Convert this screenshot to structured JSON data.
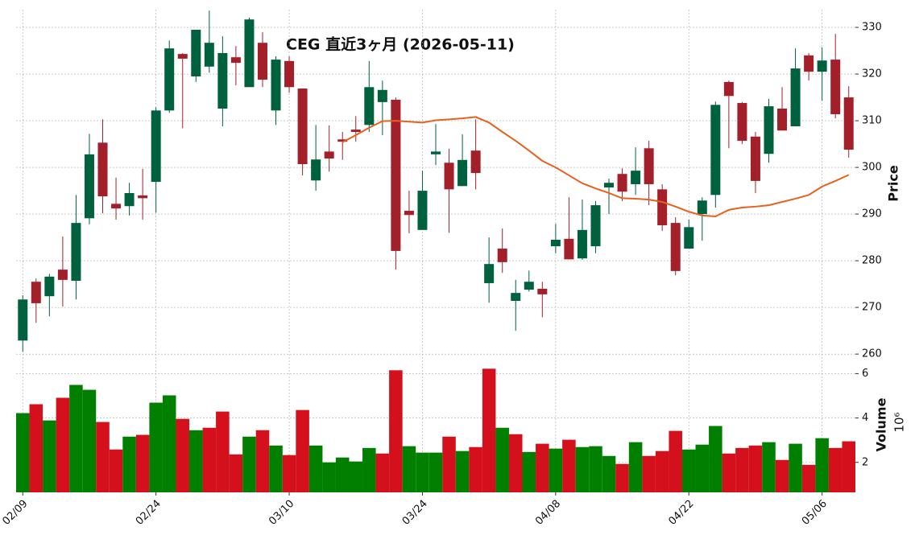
{
  "chart_data": {
    "type": "candlestick",
    "title": "CEG 直近3ヶ月 (2026-05-11)",
    "categories": [
      "02/09",
      null,
      null,
      null,
      null,
      null,
      null,
      null,
      null,
      null,
      "02/24",
      null,
      null,
      null,
      null,
      null,
      null,
      null,
      null,
      null,
      "03/10",
      null,
      null,
      null,
      null,
      null,
      null,
      null,
      null,
      null,
      "03/24",
      null,
      null,
      null,
      null,
      null,
      null,
      null,
      null,
      null,
      "04/08",
      null,
      null,
      null,
      null,
      null,
      null,
      null,
      null,
      null,
      "04/22",
      null,
      null,
      null,
      null,
      null,
      null,
      null,
      null,
      null,
      "05/06",
      null,
      null
    ],
    "open": [
      262.9,
      275.5,
      272.4,
      278.1,
      275.7,
      289.1,
      305.3,
      292.2,
      291.7,
      294.0,
      296.9,
      312.2,
      324.3,
      319.5,
      321.6,
      312.6,
      323.6,
      317.2,
      326.7,
      312.2,
      322.8,
      316.9,
      297.2,
      303.4,
      306.0,
      308.1,
      309.1,
      314.0,
      314.5,
      290.7,
      286.6,
      302.8,
      301.0,
      296.0,
      303.6,
      275.2,
      282.6,
      271.4,
      273.8,
      274.0,
      283.1,
      284.7,
      280.5,
      283.1,
      295.7,
      298.6,
      296.4,
      304.1,
      295.3,
      288.1,
      282.6,
      290.0,
      294.1,
      318.3,
      313.8,
      306.6,
      302.9,
      312.6,
      308.8,
      324.0,
      320.5,
      323.1,
      315.0
    ],
    "high": [
      272.6,
      276.2,
      277.2,
      285.2,
      294.1,
      307.2,
      310.3,
      297.8,
      296.7,
      299.7,
      312.9,
      327.2,
      324.5,
      329.5,
      333.6,
      328.1,
      326.0,
      332.1,
      329.0,
      323.8,
      323.8,
      316.9,
      309.1,
      309.0,
      307.6,
      311.0,
      322.8,
      318.6,
      315.0,
      295.0,
      299.3,
      309.3,
      304.0,
      307.1,
      310.3,
      285.0,
      286.9,
      275.9,
      277.9,
      275.5,
      287.9,
      293.6,
      293.1,
      292.8,
      297.6,
      299.8,
      304.3,
      305.7,
      296.4,
      289.3,
      288.8,
      293.6,
      314.1,
      318.6,
      314.0,
      307.6,
      314.7,
      317.2,
      325.5,
      324.5,
      325.7,
      328.6,
      317.4
    ],
    "low": [
      260.5,
      266.7,
      268.1,
      270.2,
      271.7,
      287.8,
      290.2,
      288.8,
      289.7,
      288.8,
      290.3,
      311.7,
      308.4,
      318.3,
      320.3,
      308.8,
      317.6,
      317.2,
      317.2,
      309.1,
      316.0,
      298.3,
      295.0,
      299.1,
      301.6,
      305.5,
      307.6,
      306.9,
      278.1,
      285.9,
      286.6,
      300.5,
      286.0,
      296.0,
      295.3,
      271.0,
      277.4,
      265.0,
      273.4,
      267.9,
      281.6,
      280.3,
      280.2,
      281.6,
      290.0,
      292.8,
      294.1,
      291.9,
      286.4,
      276.9,
      282.6,
      284.3,
      291.4,
      304.1,
      305.0,
      294.5,
      301.0,
      307.9,
      308.8,
      318.6,
      314.3,
      310.5,
      302.1
    ],
    "close": [
      271.7,
      270.9,
      276.6,
      275.9,
      288.1,
      302.8,
      293.8,
      291.2,
      294.5,
      293.4,
      312.2,
      325.5,
      323.3,
      329.5,
      326.7,
      324.5,
      322.4,
      331.7,
      318.8,
      323.1,
      317.2,
      300.7,
      301.7,
      301.9,
      305.5,
      307.6,
      317.2,
      316.6,
      282.1,
      289.8,
      295.0,
      303.4,
      295.3,
      301.6,
      298.8,
      279.3,
      279.7,
      273.1,
      275.5,
      272.8,
      284.5,
      280.3,
      286.6,
      291.9,
      296.7,
      294.8,
      299.3,
      296.4,
      287.6,
      277.8,
      287.2,
      292.9,
      313.4,
      315.3,
      305.7,
      297.1,
      313.1,
      307.9,
      321.2,
      320.5,
      322.9,
      311.4,
      303.8
    ],
    "up_color": "#00613e",
    "down_color": "#a3202b",
    "ma": {
      "color": "#e8601c",
      "values": [
        null,
        null,
        null,
        null,
        null,
        null,
        null,
        null,
        null,
        null,
        null,
        null,
        null,
        null,
        null,
        null,
        null,
        null,
        null,
        null,
        null,
        null,
        null,
        null,
        305.4,
        306.9,
        308.5,
        309.9,
        310.0,
        309.8,
        309.6,
        310.1,
        310.3,
        310.5,
        310.8,
        309.6,
        307.6,
        305.7,
        303.6,
        301.4,
        300.0,
        298.3,
        296.6,
        295.5,
        294.5,
        293.4,
        293.3,
        293.1,
        292.6,
        291.6,
        290.5,
        289.7,
        289.5,
        290.9,
        291.4,
        291.6,
        291.9,
        292.6,
        293.3,
        294.1,
        295.9,
        297.1,
        298.4
      ]
    },
    "ylim": [
      258.3,
      333.8
    ],
    "yticks": [
      260,
      270,
      280,
      290,
      300,
      310,
      320,
      330
    ],
    "ylabel": "Price",
    "grid": true,
    "volume": {
      "ylabel": "Volume",
      "offset_label": "10⁶",
      "ylim": [
        0.65,
        6.45
      ],
      "yticks": [
        2,
        4,
        6
      ],
      "values": [
        4.22,
        4.62,
        3.89,
        4.91,
        5.49,
        5.27,
        3.82,
        2.58,
        3.16,
        3.24,
        4.69,
        5.02,
        3.96,
        3.45,
        3.56,
        4.29,
        2.36,
        3.16,
        3.45,
        2.76,
        2.33,
        4.36,
        2.76,
        2.0,
        2.22,
        2.04,
        2.65,
        2.4,
        6.15,
        2.73,
        2.44,
        2.44,
        3.16,
        2.51,
        2.69,
        6.22,
        3.56,
        3.27,
        2.47,
        2.84,
        2.62,
        3.02,
        2.69,
        2.73,
        2.29,
        1.93,
        2.91,
        2.29,
        2.51,
        3.42,
        2.58,
        2.8,
        3.64,
        2.4,
        2.65,
        2.76,
        2.91,
        2.11,
        2.84,
        1.89,
        3.09,
        2.65,
        2.95
      ],
      "colors": [
        "#007f00",
        "#d3101c",
        "#007f00",
        "#d3101c",
        "#007f00",
        "#007f00",
        "#d3101c",
        "#d3101c",
        "#007f00",
        "#d3101c",
        "#007f00",
        "#007f00",
        "#d3101c",
        "#007f00",
        "#d3101c",
        "#d3101c",
        "#d3101c",
        "#007f00",
        "#d3101c",
        "#007f00",
        "#d3101c",
        "#d3101c",
        "#007f00",
        "#007f00",
        "#007f00",
        "#007f00",
        "#007f00",
        "#d3101c",
        "#d3101c",
        "#007f00",
        "#007f00",
        "#007f00",
        "#d3101c",
        "#007f00",
        "#d3101c",
        "#d3101c",
        "#007f00",
        "#d3101c",
        "#007f00",
        "#d3101c",
        "#007f00",
        "#d3101c",
        "#007f00",
        "#007f00",
        "#007f00",
        "#d3101c",
        "#007f00",
        "#d3101c",
        "#d3101c",
        "#d3101c",
        "#007f00",
        "#007f00",
        "#007f00",
        "#d3101c",
        "#d3101c",
        "#d3101c",
        "#007f00",
        "#d3101c",
        "#007f00",
        "#d3101c",
        "#007f00",
        "#d3101c",
        "#d3101c"
      ]
    }
  }
}
